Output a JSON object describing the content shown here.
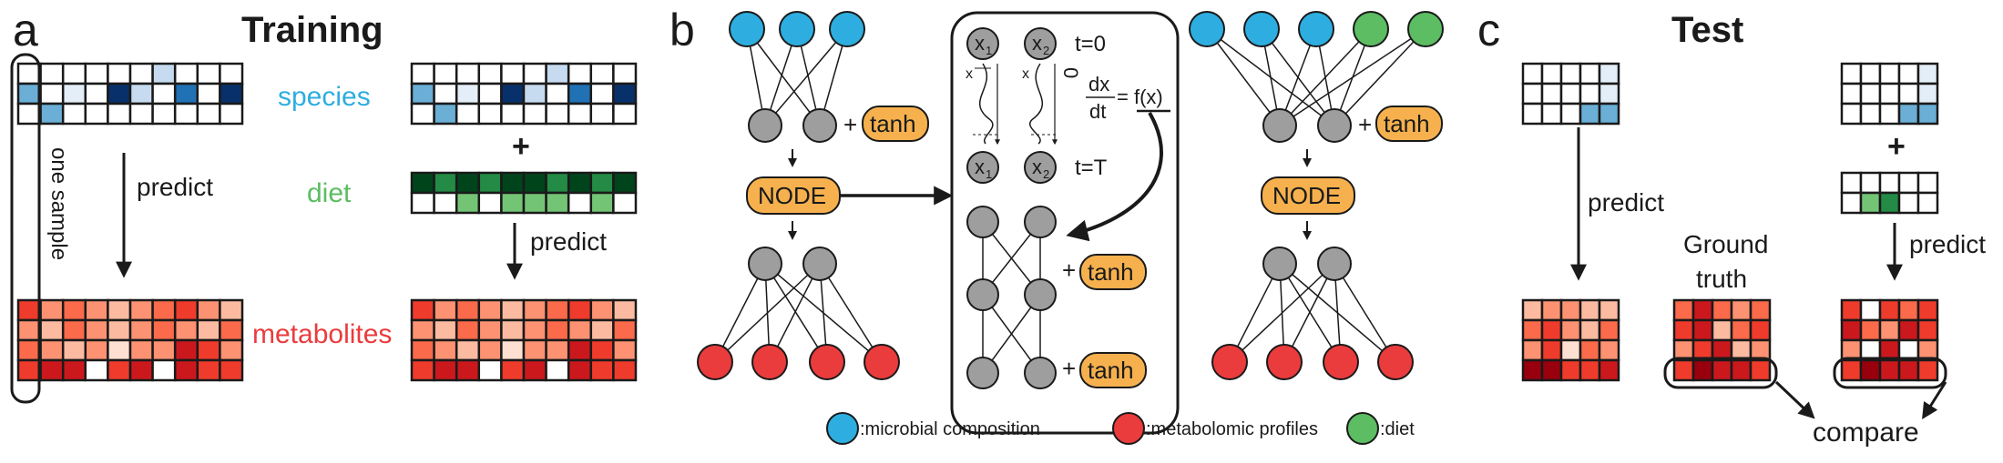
{
  "colors": {
    "species": "#2eaee0",
    "diet": "#5cbd62",
    "metabolites": "#ea3b3d",
    "node_gray": "#9e9e9e",
    "tanh_fill": "#f6b14e",
    "ink": "#1a1a1a"
  },
  "panel_a": {
    "letter": "a",
    "title": "Training",
    "species_label": "species",
    "diet_label": "diet",
    "metabolites_label": "metabolites",
    "one_sample_label": "one sample",
    "predict_left": "predict",
    "predict_right": "predict",
    "plus": "+"
  },
  "panel_b": {
    "letter": "b",
    "node_label_left": "NODE",
    "node_label_right": "NODE",
    "tanh": "tanh",
    "plus": "+",
    "x1": "x",
    "x1_sub": "1",
    "x2": "x",
    "x2_sub": "2",
    "t0": "t=0",
    "tT": "t=T",
    "dx": "dx",
    "dt": "dt",
    "eq": "= f(x)",
    "zero": "0"
  },
  "panel_c": {
    "letter": "c",
    "title": "Test",
    "predict_left": "predict",
    "predict_right": "predict",
    "ground_truth_1": "Ground",
    "ground_truth_2": "truth",
    "compare": "compare",
    "plus": "+"
  },
  "legend": {
    "microbial": ":microbial composition",
    "metabolomic": ":metabolomic profiles",
    "diet": ":diet"
  }
}
